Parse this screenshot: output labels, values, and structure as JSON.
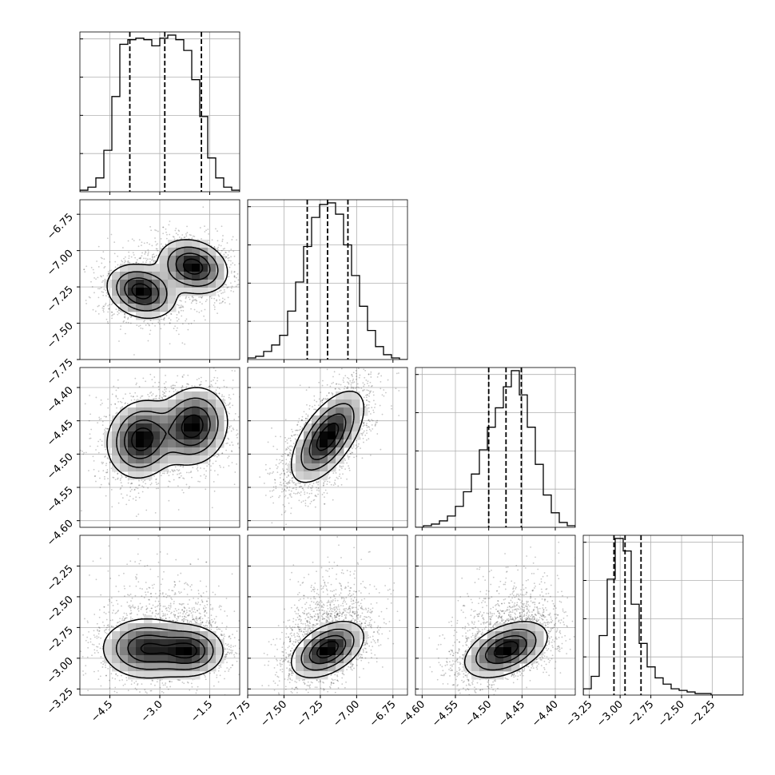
{
  "chart_data": {
    "type": "corner",
    "title": "",
    "grid": true,
    "point_color": "#000000",
    "hist_color": "#000000",
    "params": [
      {
        "name": "",
        "range": [
          -5.4,
          -0.6
        ],
        "ticks": [
          -4.5,
          -3.0,
          -1.5
        ],
        "tick_labels": [
          "−4.5",
          "−3.0",
          "−1.5"
        ],
        "quantiles": [
          -3.9,
          -2.85,
          -1.75
        ],
        "hist_bin_edges": [
          -5.4,
          -5.16,
          -4.92,
          -4.68,
          -4.44,
          -4.2,
          -3.96,
          -3.72,
          -3.48,
          -3.24,
          -3.0,
          -2.76,
          -2.52,
          -2.28,
          -2.04,
          -1.8,
          -1.56,
          -1.32,
          -1.08,
          -0.84,
          -0.6
        ],
        "hist_counts": [
          1,
          3,
          9,
          27,
          62,
          96,
          99,
          100,
          99,
          95,
          100,
          102,
          99,
          92,
          73,
          49,
          22,
          9,
          3,
          1
        ]
      },
      {
        "name": "",
        "range": [
          -7.75,
          -6.65
        ],
        "ticks": [
          -7.75,
          -7.5,
          -7.25,
          -7.0,
          -6.75
        ],
        "tick_labels": [
          "−7.75",
          "−7.50",
          "−7.25",
          "−7.00",
          "−6.75"
        ],
        "quantiles": [
          -7.34,
          -7.2,
          -7.06
        ],
        "hist_bin_edges": [
          -7.75,
          -7.695,
          -7.64,
          -7.585,
          -7.53,
          -7.475,
          -7.42,
          -7.365,
          -7.31,
          -7.255,
          -7.2,
          -7.145,
          -7.09,
          -7.035,
          -6.98,
          -6.925,
          -6.87,
          -6.815,
          -6.76,
          -6.705,
          -6.65
        ],
        "hist_counts": [
          1,
          2,
          5,
          9,
          15,
          30,
          48,
          70,
          88,
          96,
          97,
          90,
          71,
          52,
          33,
          18,
          8,
          3,
          1,
          0
        ]
      },
      {
        "name": "",
        "range": [
          -4.61,
          -4.37
        ],
        "ticks": [
          -4.6,
          -4.55,
          -4.5,
          -4.45,
          -4.4
        ],
        "tick_labels": [
          "−4.60",
          "−4.55",
          "−4.50",
          "−4.45",
          "−4.40"
        ],
        "quantiles": [
          -4.5,
          -4.474,
          -4.451
        ],
        "hist_bin_edges": [
          -4.61,
          -4.598,
          -4.586,
          -4.574,
          -4.562,
          -4.55,
          -4.538,
          -4.526,
          -4.514,
          -4.502,
          -4.49,
          -4.478,
          -4.466,
          -4.454,
          -4.442,
          -4.43,
          -4.418,
          -4.406,
          -4.394,
          -4.382,
          -4.37
        ],
        "hist_counts": [
          0,
          1,
          2,
          4,
          7,
          13,
          22,
          33,
          48,
          62,
          74,
          87,
          97,
          82,
          62,
          39,
          20,
          9,
          3,
          1
        ]
      },
      {
        "name": "",
        "range": [
          -3.3,
          -2.0
        ],
        "ticks": [
          -3.25,
          -3.0,
          -2.75,
          -2.5,
          -2.25
        ],
        "tick_labels": [
          "−3.25",
          "−3.00",
          "−2.75",
          "−2.50",
          "−2.25"
        ],
        "quantiles": [
          -3.05,
          -2.96,
          -2.83
        ],
        "hist_bin_edges": [
          -3.3,
          -3.235,
          -3.17,
          -3.105,
          -3.04,
          -2.975,
          -2.91,
          -2.845,
          -2.78,
          -2.715,
          -2.65,
          -2.585,
          -2.52,
          -2.455,
          -2.39,
          -2.325,
          -2.26,
          -2.195,
          -2.13,
          -2.065,
          -2.0
        ],
        "hist_counts": [
          4,
          12,
          38,
          74,
          100,
          92,
          58,
          33,
          18,
          11,
          7,
          4,
          3,
          2,
          1,
          1,
          0,
          0,
          0,
          0
        ]
      }
    ],
    "pairs": [
      {
        "x_param": 0,
        "y_param": 1,
        "modes": [
          {
            "x": -3.55,
            "y": -7.28,
            "sx": 0.5,
            "sy": 0.09,
            "rho": -0.2,
            "weight": 0.5
          },
          {
            "x": -2.0,
            "y": -7.11,
            "sx": 0.5,
            "sy": 0.09,
            "rho": -0.2,
            "weight": 0.5
          }
        ]
      },
      {
        "x_param": 0,
        "y_param": 2,
        "modes": [
          {
            "x": -3.55,
            "y": -4.478,
            "sx": 0.5,
            "sy": 0.028,
            "rho": 0.1,
            "weight": 0.5
          },
          {
            "x": -2.0,
            "y": -4.458,
            "sx": 0.5,
            "sy": 0.028,
            "rho": 0.1,
            "weight": 0.5
          }
        ]
      },
      {
        "x_param": 1,
        "y_param": 2,
        "modes": [
          {
            "x": -7.2,
            "y": -4.474,
            "sx": 0.12,
            "sy": 0.033,
            "rho": 0.62,
            "weight": 1.0
          }
        ]
      },
      {
        "x_param": 0,
        "y_param": 3,
        "modes": [
          {
            "x": -3.4,
            "y": -2.92,
            "sx": 0.65,
            "sy": 0.12,
            "rho": 0.0,
            "weight": 0.5
          },
          {
            "x": -2.1,
            "y": -2.94,
            "sx": 0.5,
            "sy": 0.1,
            "rho": 0.0,
            "weight": 0.5
          }
        ]
      },
      {
        "x_param": 1,
        "y_param": 3,
        "modes": [
          {
            "x": -7.2,
            "y": -2.93,
            "sx": 0.12,
            "sy": 0.11,
            "rho": 0.45,
            "weight": 1.0
          }
        ]
      },
      {
        "x_param": 2,
        "y_param": 3,
        "modes": [
          {
            "x": -4.474,
            "y": -2.93,
            "sx": 0.03,
            "sy": 0.11,
            "rho": 0.45,
            "weight": 1.0
          }
        ]
      }
    ]
  }
}
